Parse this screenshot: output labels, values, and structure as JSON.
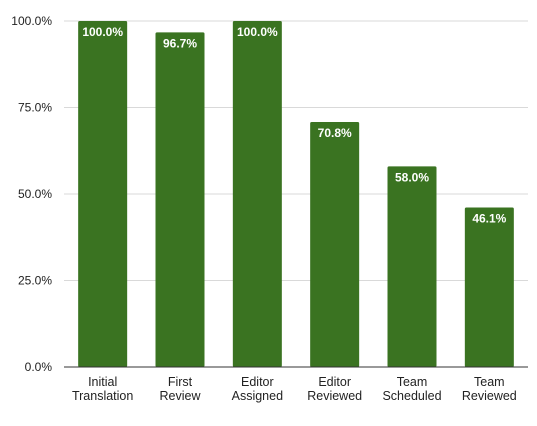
{
  "chart_data": {
    "type": "bar",
    "categories": [
      [
        "Initial",
        "Translation"
      ],
      [
        "First",
        "Review"
      ],
      [
        "Editor",
        "Assigned"
      ],
      [
        "Editor",
        "Reviewed"
      ],
      [
        "Team",
        "Scheduled"
      ],
      [
        "Team",
        "Reviewed"
      ]
    ],
    "values": [
      100.0,
      96.7,
      100.0,
      70.8,
      58.0,
      46.1
    ],
    "data_labels": [
      "100.0%",
      "96.7%",
      "100.0%",
      "70.8%",
      "58.0%",
      "46.1%"
    ],
    "y_ticks": [
      0,
      25,
      50,
      75,
      100
    ],
    "y_tick_labels": [
      "0.0%",
      "25.0%",
      "50.0%",
      "75.0%",
      "100.0%"
    ],
    "ylim": [
      0,
      100
    ],
    "grid": true,
    "legend": "none",
    "title": "",
    "xlabel": "",
    "ylabel": "",
    "colors": {
      "bar": "#3a7321",
      "grid": "#d9d9d9",
      "axis": "#333333",
      "label_text": "#ffffff"
    }
  }
}
